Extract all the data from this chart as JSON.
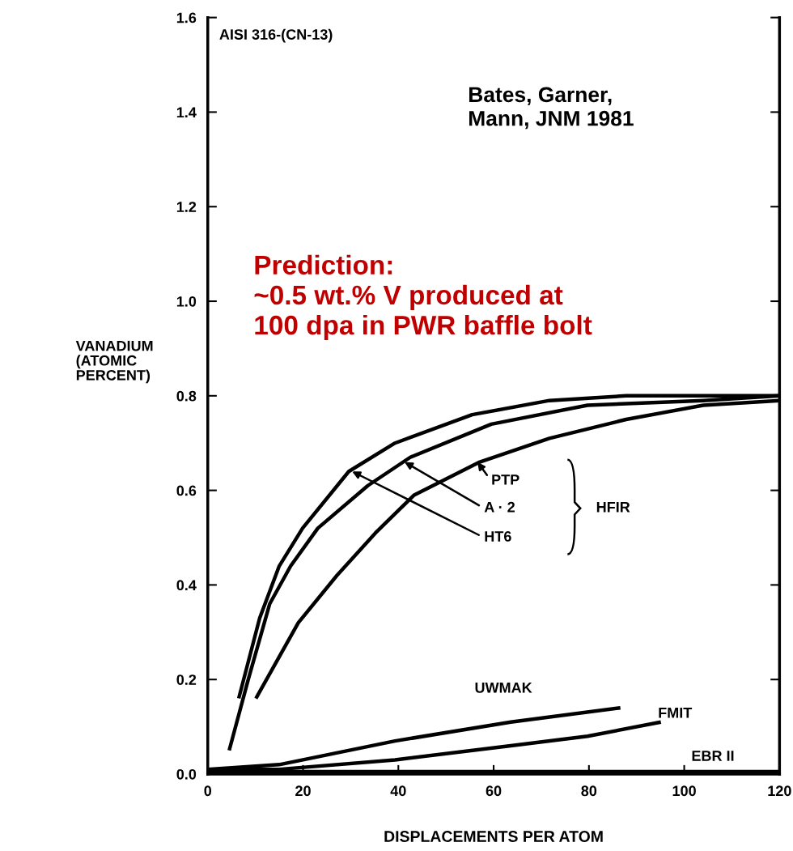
{
  "chart_data": {
    "type": "line",
    "title": "AISI 316-(CN-13)",
    "xlabel": "DISPLACEMENTS PER ATOM",
    "ylabel": "VANADIUM\n(ATOMIC\nPERCENT)",
    "xlim": [
      0,
      120
    ],
    "xticks": [
      0,
      20,
      40,
      60,
      80,
      100,
      120
    ],
    "ylim": [
      0,
      1.6
    ],
    "yticks": [
      {
        "value": 0,
        "label": "0.0"
      },
      {
        "value": 0.2,
        "label": "0.2"
      },
      {
        "value": 0.4,
        "label": "0.4"
      },
      {
        "value": 0.6,
        "label": "0.6"
      },
      {
        "value": 0.8,
        "label": "0.8"
      },
      {
        "value": 1.0,
        "label": "1.0"
      },
      {
        "value": 1.2,
        "label": "1.2"
      },
      {
        "value": 1.4,
        "label": "1.4"
      },
      {
        "value": 1.6,
        "label": "1.6"
      }
    ],
    "grid": false,
    "legend": false,
    "marker": "none",
    "line_style": "solid",
    "series": [
      {
        "color": "#000000",
        "x": [
          6.5,
          10.9,
          15.0,
          19.9,
          29.6,
          39.3,
          55.5,
          71.7,
          87.8,
          120
        ],
        "values": [
          0.16,
          0.33,
          0.44,
          0.52,
          0.64,
          0.7,
          0.76,
          0.79,
          0.8,
          0.8
        ]
      },
      {
        "color": "#000000",
        "x": [
          4.5,
          8.5,
          13.0,
          17.4,
          23.1,
          33.6,
          42.5,
          59.5,
          79.7,
          104,
          120
        ],
        "values": [
          0.05,
          0.2,
          0.36,
          0.44,
          0.52,
          0.61,
          0.67,
          0.74,
          0.78,
          0.79,
          0.8
        ]
      },
      {
        "color": "#000000",
        "x": [
          10.1,
          19.0,
          27.1,
          35.2,
          43.3,
          57.1,
          71.7,
          87.8,
          104,
          120
        ],
        "values": [
          0.16,
          0.32,
          0.42,
          0.51,
          0.59,
          0.66,
          0.71,
          0.75,
          0.78,
          0.79
        ]
      },
      {
        "name": "UWMAK",
        "color": "#000000",
        "x": [
          0,
          15,
          39.3,
          63.6,
          86.6
        ],
        "values": [
          0.01,
          0.02,
          0.07,
          0.11,
          0.14
        ]
      },
      {
        "name": "FMIT",
        "color": "#000000",
        "x": [
          0,
          15,
          39.3,
          63.6,
          79.7,
          95.1
        ],
        "values": [
          0.01,
          0.01,
          0.03,
          0.06,
          0.08,
          0.11
        ]
      },
      {
        "name": "EBR II",
        "color": "#000000",
        "x": [
          0,
          120
        ],
        "values": [
          0.005,
          0.005
        ]
      }
    ],
    "annotations": [
      "Bates, Garner,\nMann, JNM 1981",
      "Prediction:\n~0.5 wt.% V produced at\n100 dpa in PWR baffle bolt",
      "HFIR",
      {
        "text": "HT6",
        "x": 30.3,
        "y": 0.64
      },
      {
        "text": "A · 2",
        "x": 41.3,
        "y": 0.66
      },
      {
        "text": "PTP",
        "x": 56.6,
        "y": 0.66
      }
    ]
  }
}
